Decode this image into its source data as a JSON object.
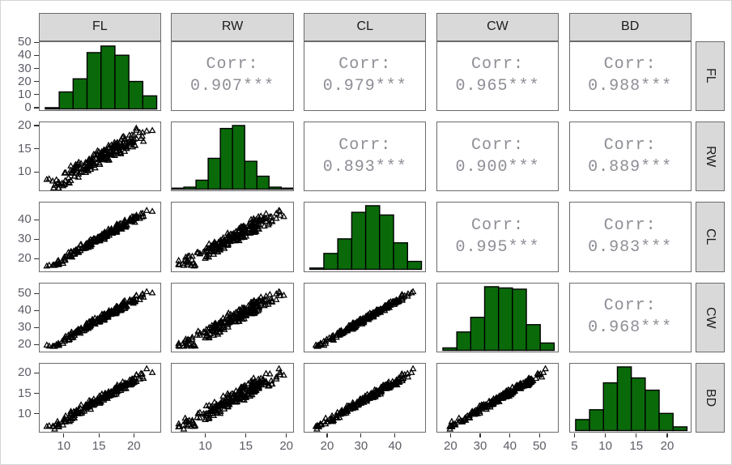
{
  "chart_data": {
    "type": "scatter",
    "subtype": "scatterplot-matrix-pairs",
    "title": "",
    "variables": [
      "FL",
      "RW",
      "CL",
      "CW",
      "BD"
    ],
    "panel_layout": {
      "diagonal": "histogram",
      "lower_triangle": "scatter",
      "upper_triangle": "correlation-text",
      "top_strips": [
        "FL",
        "RW",
        "CL",
        "CW",
        "BD"
      ],
      "right_strips": [
        "FL",
        "RW",
        "CL",
        "CW",
        "BD"
      ],
      "grid": "off",
      "panel_background": "white"
    },
    "correlation_label": "Corr:",
    "correlations": [
      {
        "x": "FL",
        "y": "RW",
        "value": 0.907,
        "text": "0.907***"
      },
      {
        "x": "FL",
        "y": "CL",
        "value": 0.979,
        "text": "0.979***"
      },
      {
        "x": "FL",
        "y": "CW",
        "value": 0.965,
        "text": "0.965***"
      },
      {
        "x": "FL",
        "y": "BD",
        "value": 0.988,
        "text": "0.988***"
      },
      {
        "x": "RW",
        "y": "CL",
        "value": 0.893,
        "text": "0.893***"
      },
      {
        "x": "RW",
        "y": "CW",
        "value": 0.9,
        "text": "0.900***"
      },
      {
        "x": "RW",
        "y": "BD",
        "value": 0.889,
        "text": "0.889***"
      },
      {
        "x": "CL",
        "y": "CW",
        "value": 0.995,
        "text": "0.995***"
      },
      {
        "x": "CL",
        "y": "BD",
        "value": 0.983,
        "text": "0.983***"
      },
      {
        "x": "CW",
        "y": "BD",
        "value": 0.968,
        "text": "0.968***"
      }
    ],
    "axes": {
      "x": {
        "FL": {
          "domain": [
            6.4,
            23.9
          ],
          "ticks": [
            10,
            15,
            20
          ]
        },
        "RW": {
          "domain": [
            5.8,
            20.9
          ],
          "ticks": [
            10,
            15,
            20
          ]
        },
        "CL": {
          "domain": [
            13.1,
            49.2
          ],
          "ticks": [
            20,
            30,
            40
          ]
        },
        "CW": {
          "domain": [
            15.2,
            56.5
          ],
          "ticks": [
            20,
            30,
            40,
            50
          ]
        },
        "BD": {
          "domain": [
            4.1,
            23.9
          ],
          "ticks": [
            5,
            10,
            15,
            20
          ]
        }
      },
      "y": {
        "FL": {
          "domain": [
            -2.4,
            51.0
          ],
          "ticks": [
            0,
            10,
            20,
            30,
            40,
            50
          ]
        },
        "RW": {
          "domain": [
            5.8,
            20.9
          ],
          "ticks": [
            10,
            15,
            20
          ]
        },
        "CL": {
          "domain": [
            13.1,
            49.2
          ],
          "ticks": [
            20,
            30,
            40
          ]
        },
        "CW": {
          "domain": [
            15.2,
            56.5
          ],
          "ticks": [
            20,
            30,
            40,
            50
          ]
        },
        "BD": {
          "domain": [
            5.3,
            22.4
          ],
          "ticks": [
            10,
            15,
            20
          ]
        }
      }
    },
    "histograms": {
      "FL": {
        "bin_start": 7.2,
        "bin_width": 1.99,
        "counts": [
          1,
          13,
          23,
          43,
          48,
          41,
          21,
          10
        ]
      },
      "RW": {
        "bin_start": 5.8,
        "bin_width": 1.5,
        "counts": [
          1,
          2,
          9,
          31,
          61,
          64,
          28,
          13,
          2,
          1
        ]
      },
      "CL": {
        "bin_start": 14.7,
        "bin_width": 4.11,
        "counts": [
          1,
          12,
          23,
          43,
          48,
          41,
          20,
          6
        ]
      },
      "CW": {
        "bin_start": 17.1,
        "bin_width": 4.69,
        "counts": [
          2,
          15,
          27,
          52,
          51,
          50,
          21,
          6
        ]
      },
      "BD": {
        "bin_start": 5.0,
        "bin_width": 2.25,
        "counts": [
          9,
          17,
          39,
          52,
          43,
          33,
          14,
          3
        ]
      }
    },
    "scatter": {
      "n_points": 200,
      "marker": "open-triangle",
      "data_ranges": {
        "FL": [
          7.2,
          23.1
        ],
        "RW": [
          6.5,
          20.2
        ],
        "CL": [
          14.7,
          47.6
        ],
        "CW": [
          17.1,
          54.6
        ],
        "BD": [
          6.1,
          21.6
        ]
      },
      "noise_fraction": {
        "FL": 0.045,
        "RW": 0.1,
        "CL": 0.03,
        "CW": 0.027,
        "BD": 0.04
      },
      "seed": 42
    },
    "colors": {
      "histogram_fill": "#0a6a0a",
      "histogram_stroke": "#000000",
      "marker_stroke": "#000000",
      "strip_fill": "#d9d9d9",
      "strip_border": "#6b6b6b",
      "panel_border": "#6b6b6b",
      "corr_text": "#8e8e96",
      "tick_label": "#5c5c66",
      "strip_text": "#1c1c1c",
      "tick_mark": "#333333",
      "background": "#ffffff"
    }
  }
}
